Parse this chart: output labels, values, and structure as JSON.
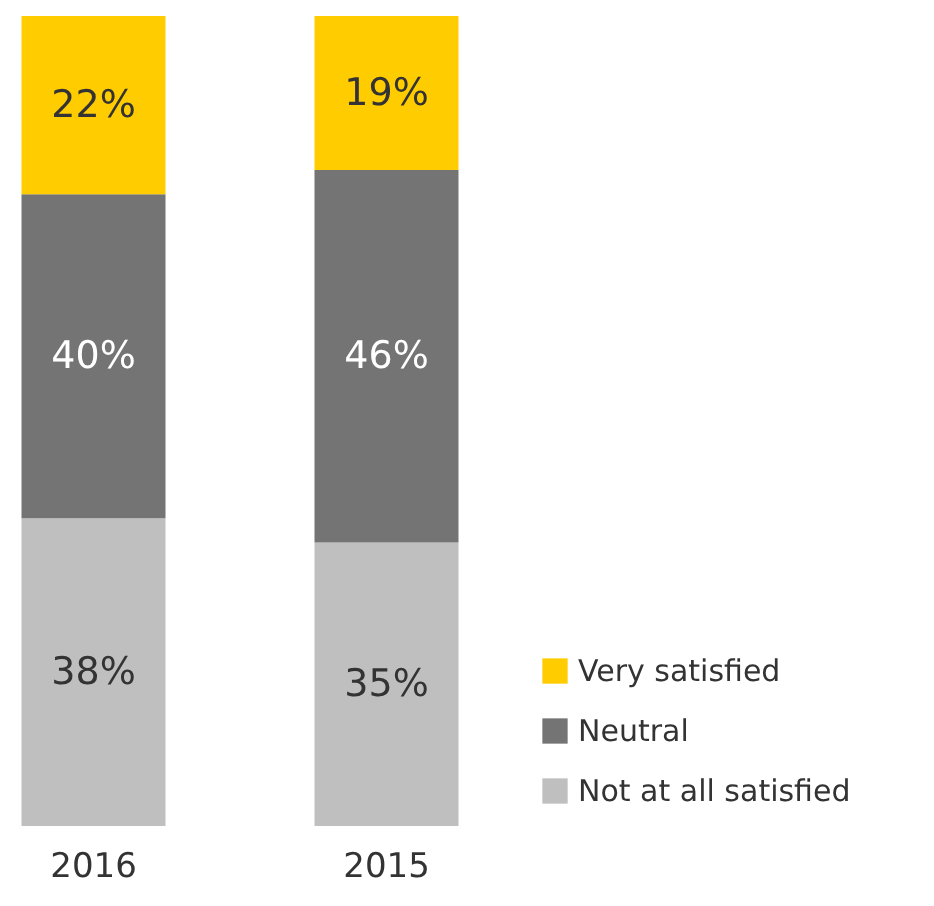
{
  "chart_data": {
    "type": "bar",
    "stacked": true,
    "legend": "bottom right",
    "categories": [
      "2016",
      "2015"
    ],
    "series": [
      {
        "name": "Not at all satisfied",
        "color": "#bfbfbf",
        "values": [
          38,
          35
        ],
        "value_labels": [
          "38%",
          "35%"
        ]
      },
      {
        "name": "Neutral",
        "color": "#747474",
        "values": [
          40,
          46
        ],
        "value_labels": [
          "40%",
          "46%"
        ]
      },
      {
        "name": "Very satisfied",
        "color": "#ffcc00",
        "values": [
          22,
          19
        ],
        "value_labels": [
          "22%",
          "19%"
        ]
      }
    ]
  }
}
